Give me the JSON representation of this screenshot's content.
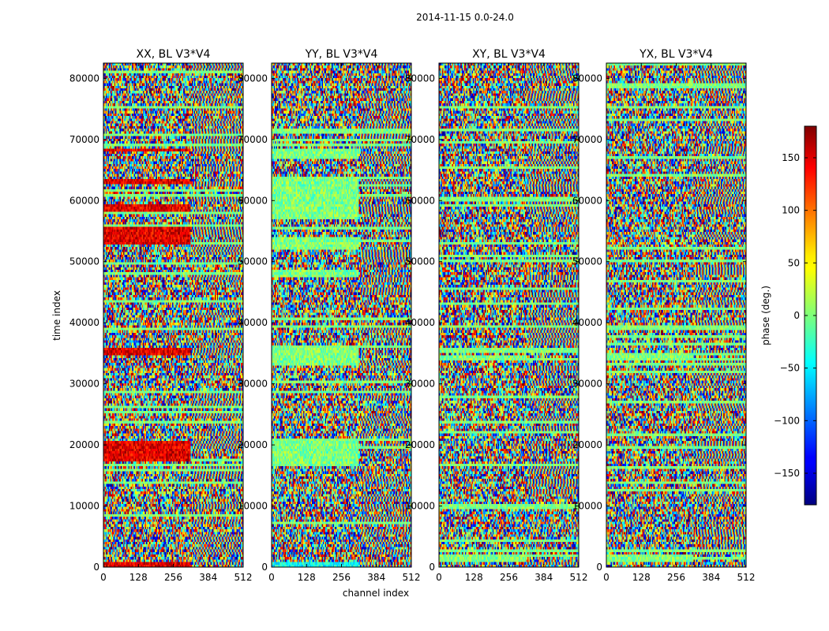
{
  "figure": {
    "suptitle": "2014-11-15 0.0-24.0"
  },
  "chart_data": {
    "type": "heatmap",
    "xlabel": "channel index",
    "ylabel": "time index",
    "xlim": [
      0,
      512
    ],
    "ylim": [
      0,
      82500
    ],
    "x_ticks": [
      0,
      128,
      256,
      384,
      512
    ],
    "y_ticks": [
      0,
      10000,
      20000,
      30000,
      40000,
      50000,
      60000,
      70000,
      80000
    ],
    "panels": [
      {
        "title": "XX, BL V3*V4",
        "seed": 11,
        "strong_bands": [
          [
            17500,
            20500,
            "red"
          ],
          [
            34800,
            35800,
            "red"
          ],
          [
            53000,
            55500,
            "red"
          ],
          [
            58000,
            59500,
            "red"
          ],
          [
            62500,
            63500,
            "red"
          ],
          [
            68000,
            68500,
            "red"
          ],
          [
            0,
            800,
            "red"
          ]
        ]
      },
      {
        "title": "YY, BL V3*V4",
        "seed": 23,
        "strong_bands": [
          [
            16500,
            20500,
            "green"
          ],
          [
            33000,
            36000,
            "green"
          ],
          [
            47500,
            48500,
            "green"
          ],
          [
            52000,
            54000,
            "green"
          ],
          [
            57000,
            64000,
            "green"
          ],
          [
            67000,
            68500,
            "green"
          ],
          [
            0,
            800,
            "cyan"
          ]
        ]
      },
      {
        "title": "XY, BL V3*V4",
        "seed": 37,
        "strong_bands": [
          [
            1000,
            2200,
            "green"
          ],
          [
            34000,
            34800,
            "green"
          ]
        ]
      },
      {
        "title": "YX, BL V3*V4",
        "seed": 53,
        "strong_bands": [
          [
            1000,
            2200,
            "green"
          ],
          [
            34000,
            34800,
            "green"
          ]
        ]
      }
    ],
    "colorbar": {
      "label": "phase (deg.)",
      "range": [
        -180,
        180
      ],
      "ticks": [
        150,
        100,
        50,
        0,
        -50,
        -100,
        -150
      ],
      "tick_labels": [
        "150",
        "100",
        "50",
        "0",
        "−50",
        "−100",
        "−150"
      ],
      "colormap": "jet"
    },
    "grid": false
  }
}
